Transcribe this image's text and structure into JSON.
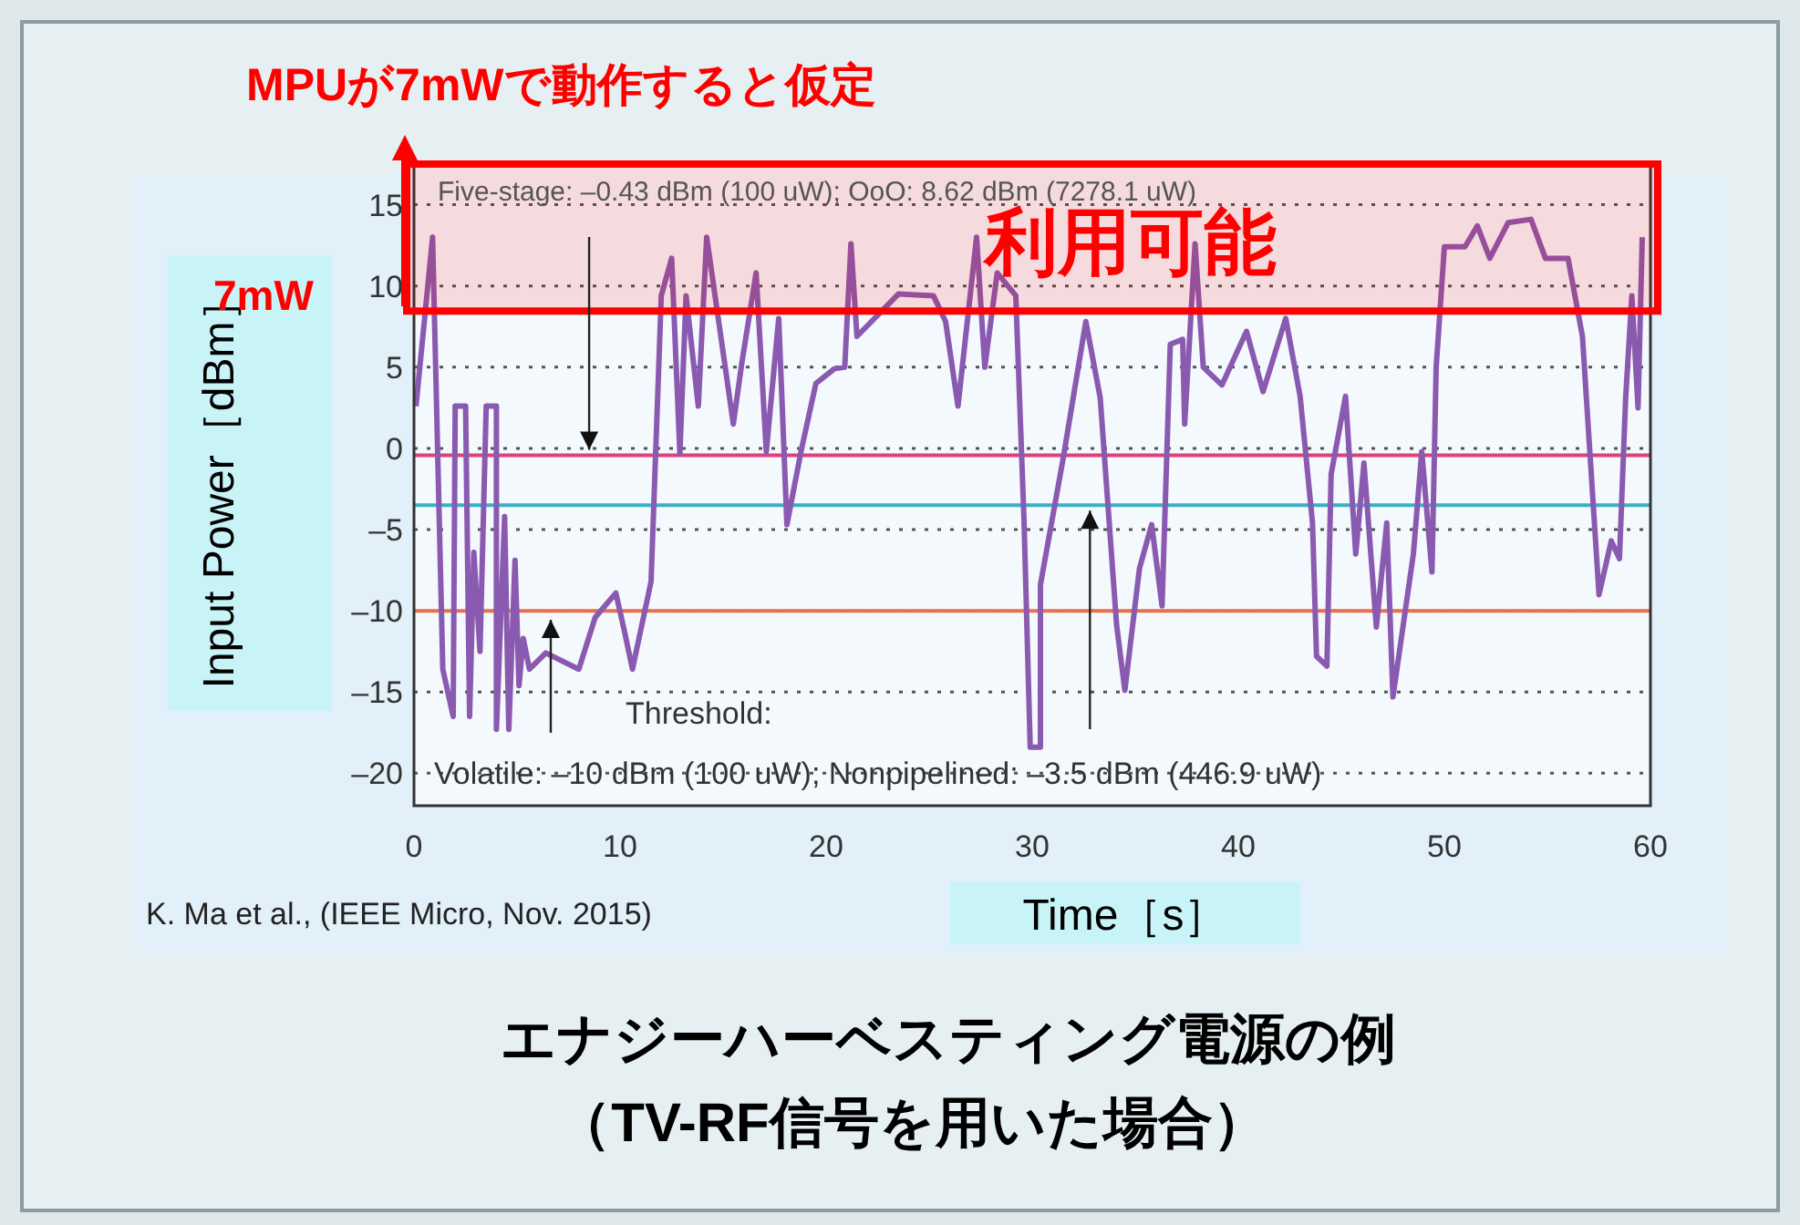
{
  "chart_data": {
    "type": "line",
    "title": "MPUが7mWで動作すると仮定",
    "xlabel": "Time［s］",
    "ylabel": "Input Power［dBm］",
    "x": [
      0.1,
      0.9,
      1.4,
      1.9,
      2.0,
      2.5,
      2.7,
      2.9,
      3.2,
      3.5,
      4.0,
      4.0,
      4.4,
      4.6,
      4.9,
      5.1,
      5.3,
      5.6,
      6.4,
      8.0,
      8.8,
      9.8,
      10.2,
      10.6,
      11.5,
      12.0,
      12.5,
      12.9,
      13.2,
      13.8,
      14.2,
      15.5,
      15.9,
      16.6,
      17.1,
      17.7,
      18.1,
      18.8,
      19.5,
      20.4,
      20.9,
      21.2,
      21.5,
      23.5,
      25.2,
      25.8,
      26.4,
      27.3,
      27.7,
      28.3,
      29.2,
      29.6,
      29.9,
      30.4,
      30.4,
      31.5,
      32.6,
      33.3,
      33.6,
      34.1,
      34.5,
      35.2,
      35.8,
      36.3,
      36.7,
      37.3,
      37.4,
      37.9,
      38.3,
      39.2,
      40.4,
      41.2,
      42.3,
      43.0,
      43.6,
      43.8,
      44.3,
      44.5,
      45.2,
      45.7,
      46.1,
      46.7,
      47.2,
      47.5,
      48.5,
      48.9,
      49.4,
      49.6,
      50.0,
      51.0,
      51.6,
      52.2,
      53.1,
      54.2,
      54.9,
      56.0,
      56.7,
      57.5,
      58.1,
      58.5,
      58.8,
      59.1,
      59.4,
      59.6
    ],
    "series": [
      {
        "color": "#8a5ab0",
        "values": [
          2.6,
          13,
          -13.6,
          -16.5,
          2.6,
          2.6,
          -16.5,
          -6.4,
          -12.5,
          2.6,
          2.6,
          -17.3,
          -4.2,
          -17.3,
          -6.9,
          -14.6,
          -11.7,
          -13.6,
          -12.6,
          -13.6,
          -10.4,
          -8.9,
          -11.2,
          -13.6,
          -8.2,
          9.4,
          11.7,
          -0.3,
          9.4,
          2.6,
          13,
          1.5,
          5.2,
          10.8,
          -0.2,
          8.0,
          -4.7,
          -0.1,
          4.0,
          4.9,
          5.0,
          12.6,
          6.9,
          9.5,
          9.4,
          7.8,
          2.6,
          13,
          5,
          10.8,
          9.4,
          -4.4,
          -18.4,
          -18.4,
          -8.4,
          -0.6,
          7.8,
          3.1,
          -2.2,
          -10.9,
          -14.9,
          -7.4,
          -4.7,
          -9.7,
          6.4,
          6.7,
          1.5,
          12.6,
          5.0,
          3.9,
          7.2,
          3.5,
          8.0,
          3.2,
          -4.6,
          -12.8,
          -13.4,
          -1.6,
          3.2,
          -6.5,
          -0.9,
          -11.0,
          -4.6,
          -15.3,
          -6.5,
          -0.2,
          -7.6,
          5.0,
          12.4,
          12.4,
          13.7,
          11.7,
          13.9,
          14.1,
          11.7,
          11.7,
          6.9,
          -9.0,
          -5.7,
          -6.8,
          3.1,
          9.4,
          2.5,
          13
        ]
      }
    ],
    "xlim": [
      0,
      60
    ],
    "xticks": [
      0,
      10,
      20,
      30,
      40,
      50,
      60
    ],
    "ylim": [
      -22,
      17.5
    ],
    "yticks": [
      15,
      10,
      5,
      0,
      {
        "value": -5,
        "label": "–5"
      },
      {
        "value": -10,
        "label": "–10"
      },
      {
        "value": -15,
        "label": "–15"
      },
      {
        "value": -20,
        "label": "–20"
      }
    ],
    "grid": "y",
    "marker": "none",
    "line_style": "solid",
    "ref_lines": [
      {
        "axis": "y",
        "value": -0.43,
        "color": "#e0407a"
      },
      {
        "axis": "y",
        "value": -3.5,
        "color": "#3ab0c8"
      },
      {
        "axis": "y",
        "value": -10,
        "color": "#e8704a"
      }
    ],
    "bands": [
      {
        "axis": "y",
        "from": 8.45,
        "to": 17.5,
        "label": "利用可能",
        "color": "#ff0000"
      }
    ],
    "annotations": [
      {
        "text": "Five-stage: –0.43 dBm (100 uW); OoO: 8.62 dBm (7278.1 uW)",
        "x": 8.5,
        "y": -0.43
      },
      "Threshold:",
      {
        "text": "Volatile: –10 dBm (100 uW); Nonpipelined: –3.5 dBm (446.9 uW)",
        "x": 32.8,
        "y": -3.5
      },
      "7mW",
      "K. Ma et al., (IEEE Micro, Nov. 2015)",
      "エナジーハーベスティング電源の例",
      "（TV-RF信号を用いた場合）"
    ]
  }
}
